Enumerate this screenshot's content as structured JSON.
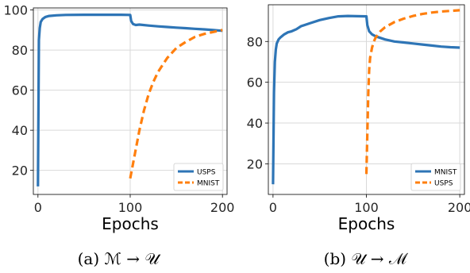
{
  "colors": {
    "series_a": "#2e75b6",
    "series_b": "#ff7f0e",
    "grid": "#d9d9d9",
    "axes": "#000000"
  },
  "chart_data": [
    {
      "type": "line",
      "caption": "(a) ℳ → 𝒰",
      "xlabel": "Epochs",
      "ylabel": "",
      "xlim": [
        -5,
        205
      ],
      "ylim": [
        8,
        101
      ],
      "xticks": [
        0,
        100,
        200
      ],
      "yticks": [
        20,
        40,
        60,
        80,
        100
      ],
      "grid": true,
      "legend": {
        "placement": "bottom-right",
        "entries": [
          "USPS",
          "MNIST"
        ]
      },
      "series": [
        {
          "name": "USPS",
          "style": "solid",
          "color": "#2e75b6",
          "x": [
            0,
            1,
            2,
            3,
            5,
            8,
            12,
            20,
            30,
            50,
            70,
            90,
            100,
            101,
            103,
            106,
            110,
            120,
            130,
            140,
            150,
            160,
            170,
            180,
            190,
            200
          ],
          "y": [
            12,
            85,
            91,
            94,
            95.5,
            96.5,
            97,
            97.3,
            97.5,
            97.6,
            97.6,
            97.6,
            97.5,
            94.5,
            93,
            92.5,
            92.7,
            92.2,
            91.8,
            91.5,
            91.2,
            90.9,
            90.6,
            90.3,
            90,
            89.6
          ]
        },
        {
          "name": "MNIST",
          "style": "dashed",
          "color": "#ff7f0e",
          "x": [
            100,
            105,
            110,
            115,
            120,
            125,
            130,
            140,
            150,
            160,
            170,
            180,
            190,
            200
          ],
          "y": [
            16,
            28,
            40,
            50,
            58,
            64,
            69,
            76,
            81,
            84,
            86.5,
            88,
            89,
            90
          ]
        }
      ]
    },
    {
      "type": "line",
      "caption": "(b) 𝒰 → ℳ",
      "xlabel": "Epochs",
      "ylabel": "",
      "xlim": [
        -5,
        205
      ],
      "ylim": [
        5,
        98
      ],
      "xticks": [
        0,
        100,
        200
      ],
      "yticks": [
        20,
        40,
        60,
        80
      ],
      "grid": true,
      "legend": {
        "placement": "bottom-right",
        "entries": [
          "MNIST",
          "USPS"
        ]
      },
      "series": [
        {
          "name": "MNIST",
          "style": "solid",
          "color": "#2e75b6",
          "x": [
            0,
            1,
            2,
            3,
            4,
            6,
            8,
            12,
            16,
            20,
            25,
            30,
            40,
            50,
            60,
            70,
            80,
            90,
            100,
            101,
            103,
            106,
            110,
            120,
            130,
            140,
            150,
            160,
            170,
            180,
            190,
            200
          ],
          "y": [
            10,
            55,
            70,
            76,
            79,
            81,
            82,
            83.5,
            84.5,
            85,
            86,
            87.5,
            89,
            90.5,
            91.5,
            92.3,
            92.5,
            92.4,
            92.3,
            88,
            85,
            83.5,
            82.5,
            81,
            80,
            79.5,
            79,
            78.5,
            78,
            77.5,
            77.2,
            77
          ]
        },
        {
          "name": "USPS",
          "style": "dashed",
          "color": "#ff7f0e",
          "x": [
            100,
            101,
            102,
            103,
            104,
            106,
            108,
            110,
            115,
            120,
            130,
            140,
            150,
            160,
            170,
            180,
            190,
            200
          ],
          "y": [
            15,
            35,
            55,
            66,
            72,
            77,
            80,
            82,
            85,
            87,
            89.5,
            91.2,
            92.5,
            93.5,
            94.2,
            94.7,
            95,
            95.3
          ]
        }
      ]
    }
  ]
}
